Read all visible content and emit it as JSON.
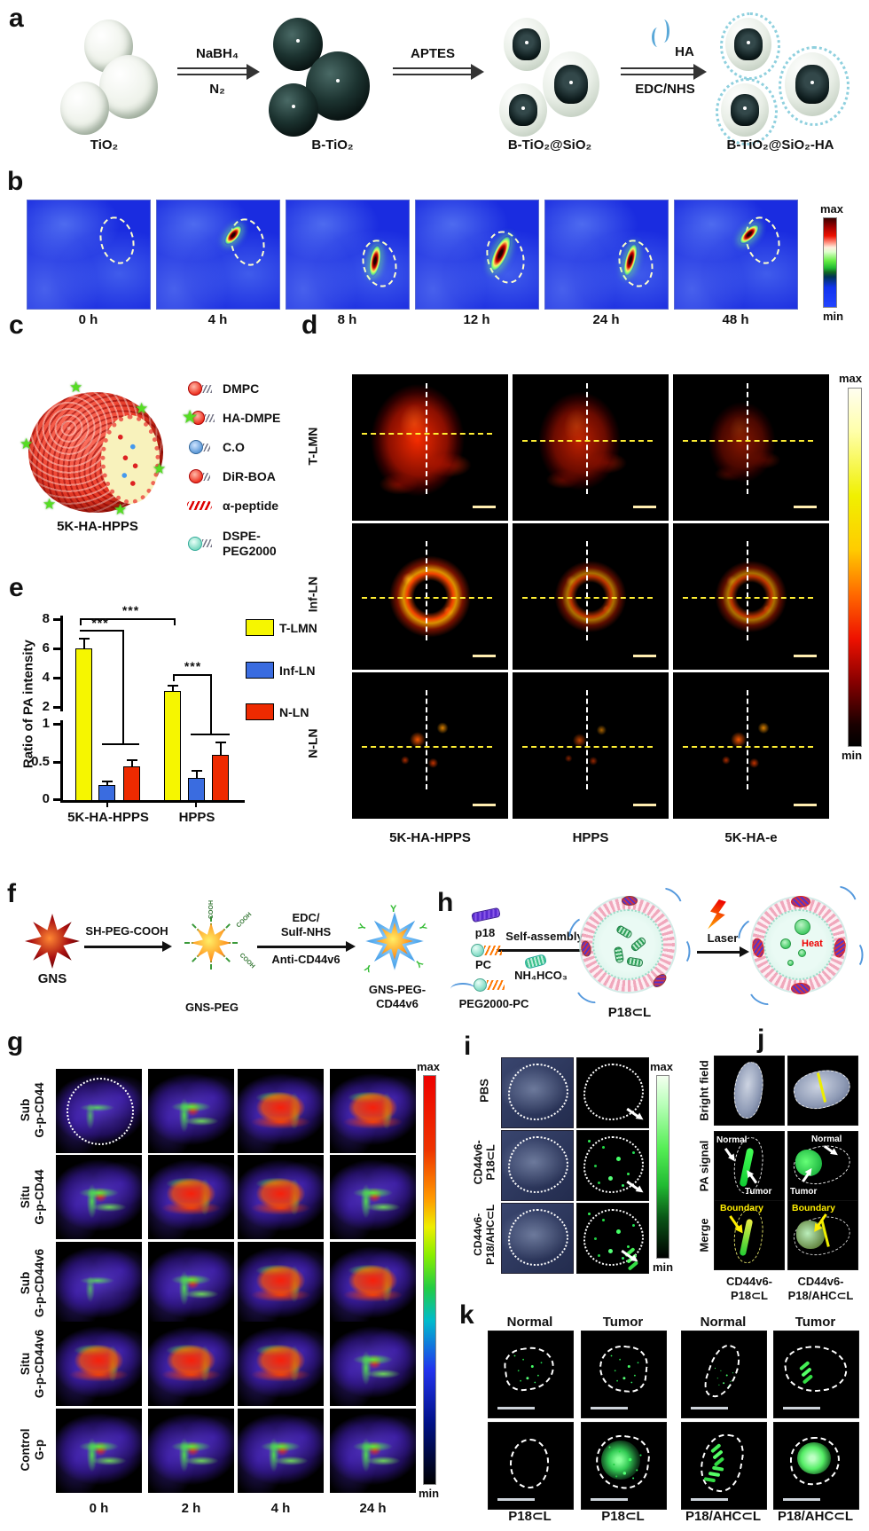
{
  "panel_a": {
    "label": "a",
    "products": [
      "TiO₂",
      "B-TiO₂",
      "B-TiO₂@SiO₂",
      "B-TiO₂@SiO₂-HA"
    ],
    "arrow1": {
      "top": "NaBH₄",
      "bottom": "N₂"
    },
    "arrow2": {
      "top": "APTES"
    },
    "arrow3": {
      "top": "HA",
      "bottom": "EDC/NHS"
    }
  },
  "panel_b": {
    "label": "b",
    "timepoints": [
      "0 h",
      "4 h",
      "8 h",
      "12 h",
      "24 h",
      "48 h"
    ],
    "colorbar": {
      "max": "max",
      "min": "min"
    }
  },
  "panel_c": {
    "label": "c",
    "particle": "5K-HA-HPPS",
    "legend": [
      {
        "text": "DMPC"
      },
      {
        "text": "HA-DMPE"
      },
      {
        "text": "C.O"
      },
      {
        "text": "DiR-BOA"
      },
      {
        "text": "α-peptide"
      },
      {
        "text": "DSPE-PEG2000"
      }
    ]
  },
  "panel_d": {
    "label": "d",
    "row_labels": [
      "T-LMN",
      "Inf-LN",
      "N-LN"
    ],
    "col_labels": [
      "5K-HA-HPPS",
      "HPPS",
      "5K-HA-e"
    ],
    "colorbar": {
      "max": "max",
      "min": "min"
    }
  },
  "panel_e": {
    "label": "e",
    "ylabel": "Ratio of PA intensity",
    "yticks_upper": [
      "8",
      "6",
      "4",
      "2"
    ],
    "yticks_lower": [
      "1",
      "0.5",
      "0"
    ],
    "sig": "***"
  },
  "chart_data": {
    "type": "bar",
    "title": "",
    "xlabel": "",
    "ylabel": "Ratio of PA intensity",
    "categories": [
      "5K-HA-HPPS",
      "HPPS"
    ],
    "series": [
      {
        "name": "T-LMN",
        "color": "#f6f600",
        "values": [
          6.0,
          3.1
        ],
        "errors": [
          0.7,
          0.4
        ]
      },
      {
        "name": "Inf-LN",
        "color": "#3a6ce0",
        "values": [
          0.2,
          0.3
        ],
        "errors": [
          0.06,
          0.1
        ]
      },
      {
        "name": "N-LN",
        "color": "#ee2a00",
        "values": [
          0.45,
          0.6
        ],
        "errors": [
          0.09,
          0.18
        ]
      }
    ],
    "axis_break": {
      "lower_range": [
        0,
        1
      ],
      "upper_range": [
        2,
        8
      ]
    },
    "significance": [
      "***",
      "***",
      "***"
    ],
    "legend_position": "right",
    "grid": false
  },
  "panel_f": {
    "label": "f",
    "start": "GNS",
    "arrow1_label": "SH-PEG-COOH",
    "mid": "GNS-PEG",
    "arrow2_top1": "EDC/",
    "arrow2_top2": "Sulf-NHS",
    "arrow2_bottom": "Anti-CD44v6",
    "end_line1": "GNS-PEG-",
    "end_line2": "CD44v6",
    "arm_text": "COOH"
  },
  "panel_g": {
    "label": "g",
    "rows": [
      {
        "line1": "Sub",
        "line2": "G-p-CD44"
      },
      {
        "line1": "Situ",
        "line2": "G-p-CD44"
      },
      {
        "line1": "Sub",
        "line2": "G-p-CD44v6"
      },
      {
        "line1": "Situ",
        "line2": "G-p-CD44v6"
      },
      {
        "line1": "Control",
        "line2": "G-p"
      }
    ],
    "timepoints": [
      "0 h",
      "2 h",
      "4 h",
      "24 h"
    ],
    "colorbar": {
      "max": "max",
      "min": "min"
    }
  },
  "panel_h": {
    "label": "h",
    "component1": "p18",
    "component2": "PC",
    "component3": "PEG2000-PC",
    "arrow1_label": "Self-assembly",
    "reagent": "NH₄HCO₃",
    "product": "P18⊂L",
    "arrow2_label": "Laser",
    "heat_label": "Heat"
  },
  "panel_i": {
    "label": "i",
    "rows": [
      {
        "line1": "PBS",
        "line2": ""
      },
      {
        "line1": "CD44v6-",
        "line2": "P18⊂L"
      },
      {
        "line1": "CD44v6-",
        "line2": "P18/AHC⊂L"
      }
    ],
    "colorbar": {
      "max": "max",
      "min": "min"
    }
  },
  "panel_j": {
    "label": "j",
    "rows": [
      "Bright field",
      "PA signal",
      "Merge"
    ],
    "annotations": {
      "normal": "Normal",
      "tumor": "Tumor",
      "boundary": "Boundary"
    },
    "cols": [
      {
        "line1": "CD44v6-",
        "line2": "P18⊂L"
      },
      {
        "line1": "CD44v6-",
        "line2": "P18/AHC⊂L"
      }
    ]
  },
  "panel_k": {
    "label": "k",
    "col_headers": [
      "Normal",
      "Tumor",
      "Normal",
      "Tumor"
    ],
    "col_footers": [
      "P18⊂L",
      "P18⊂L",
      "P18/AHC⊂L",
      "P18/AHC⊂L"
    ]
  }
}
